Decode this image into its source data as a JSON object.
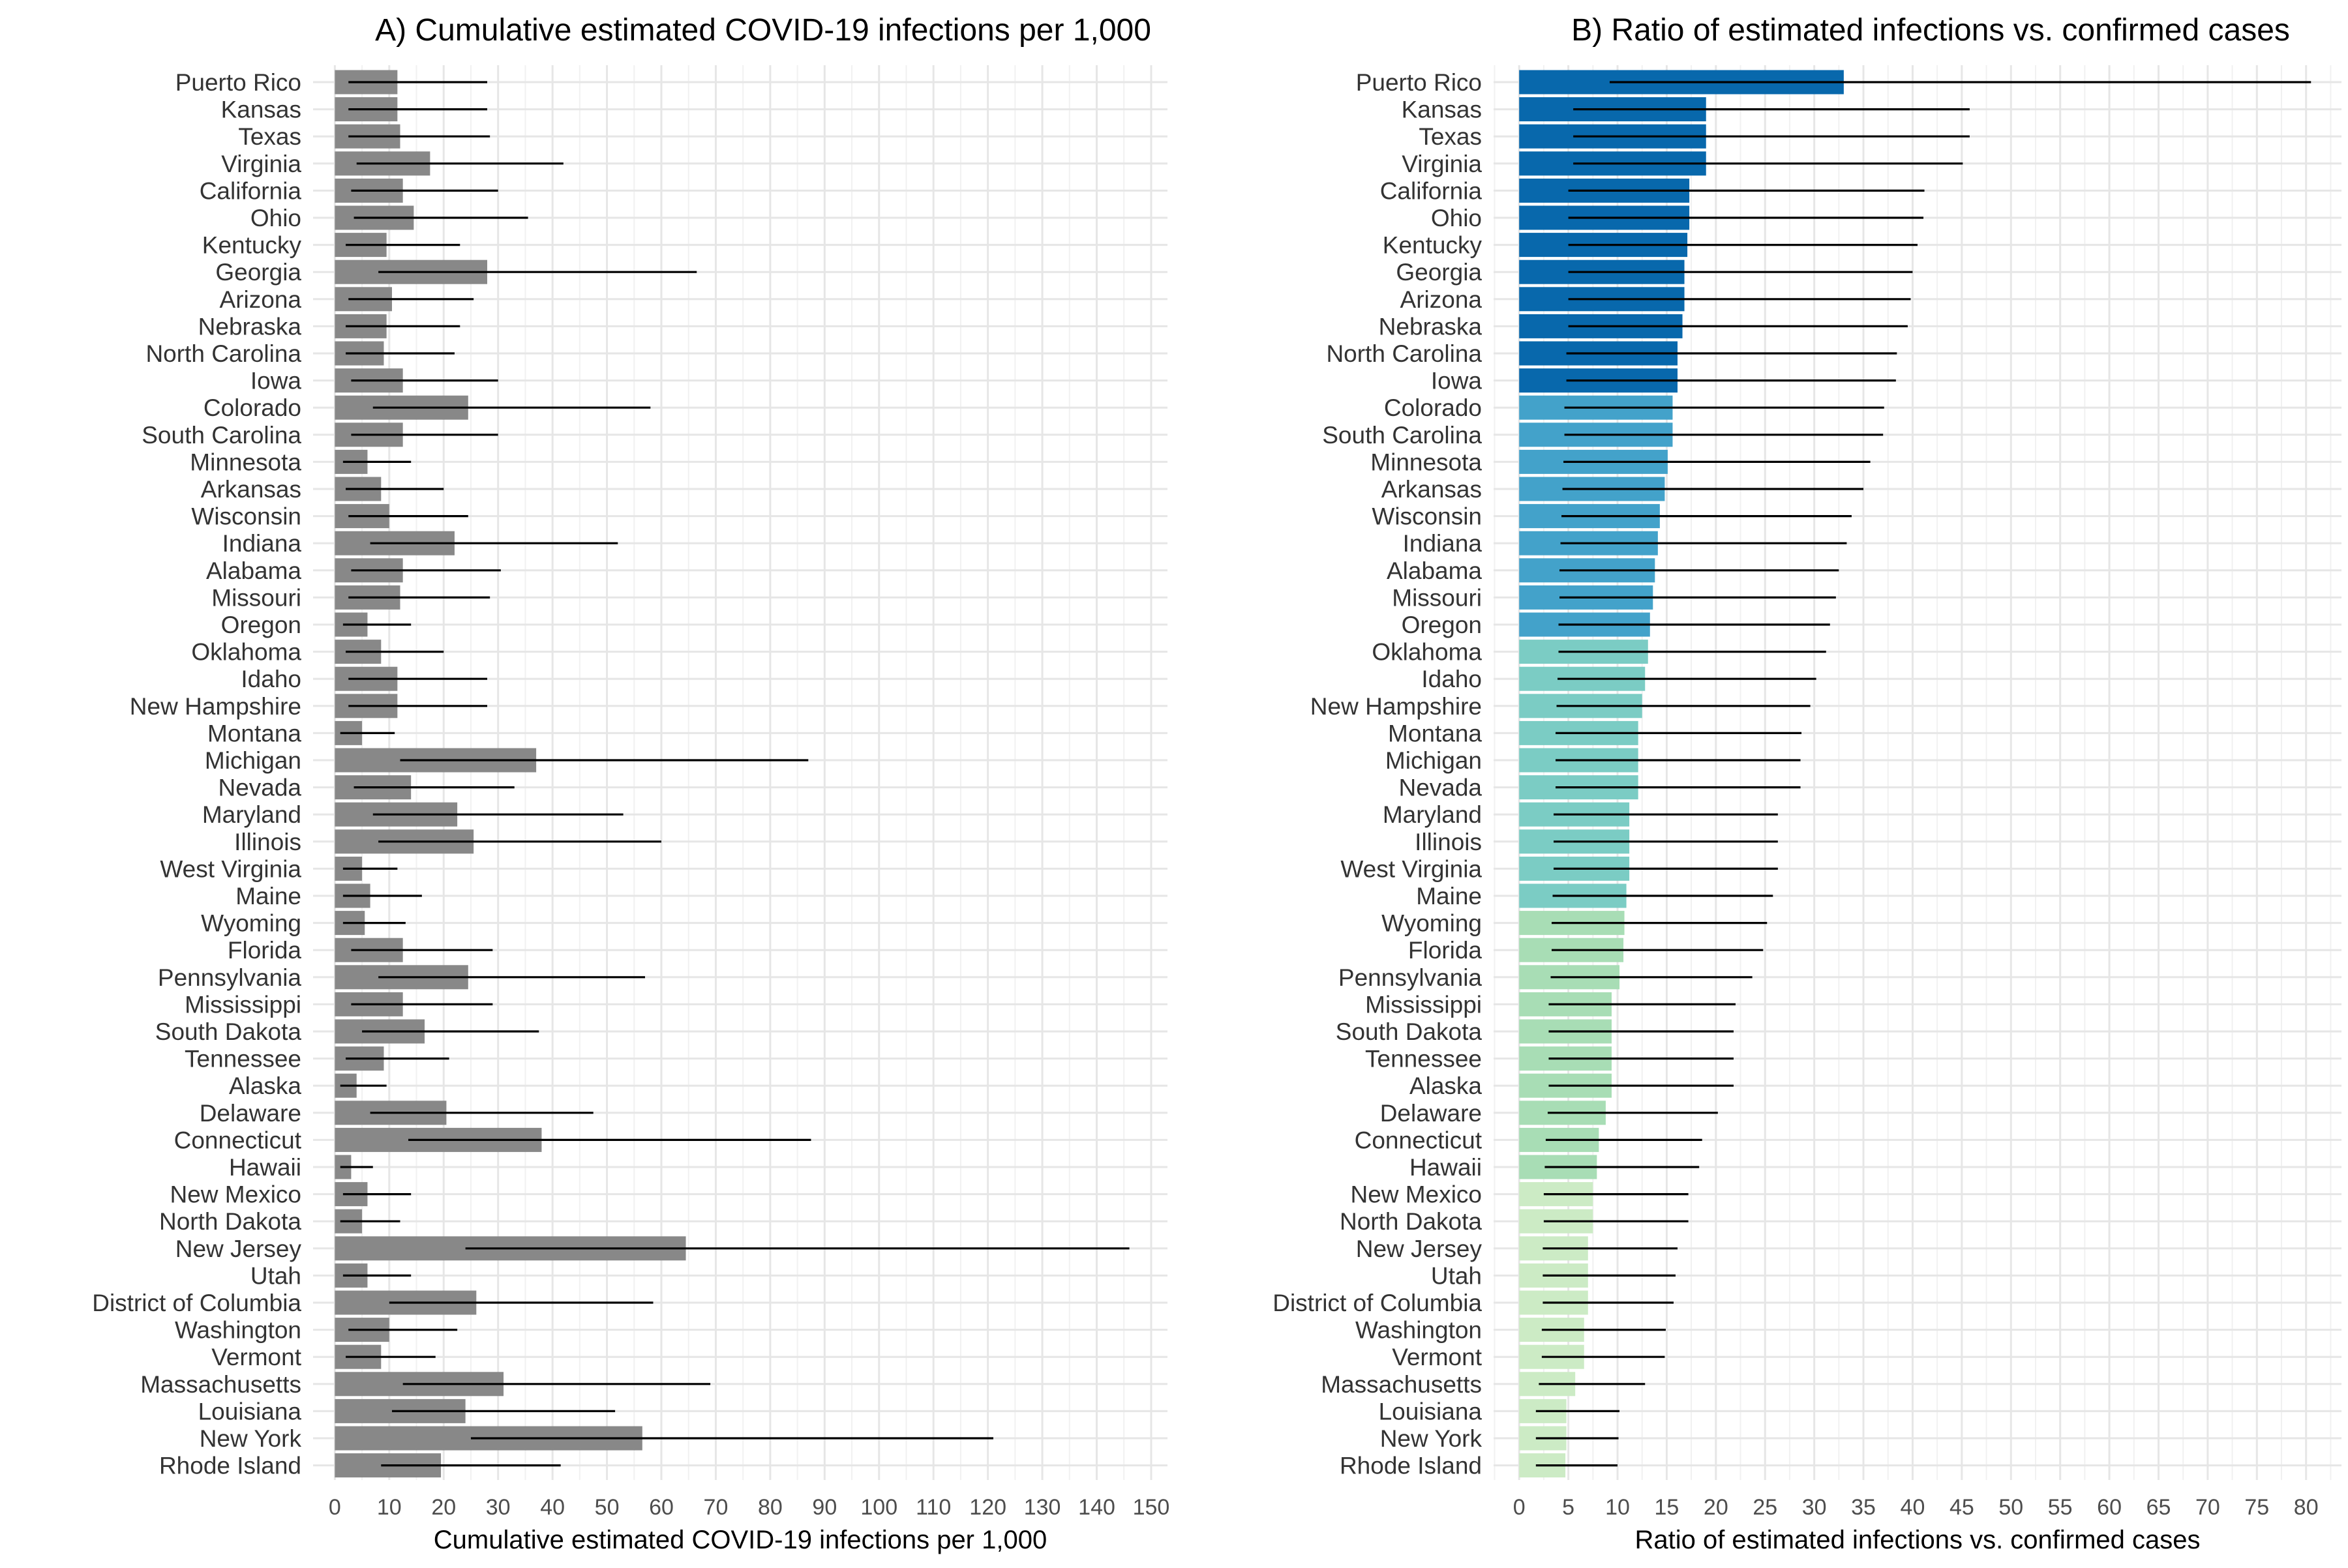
{
  "chart_data": [
    {
      "type": "bar",
      "orientation": "horizontal",
      "title": "A) Cumulative estimated COVID-19 infections per 1,000",
      "xlabel": "Cumulative estimated COVID-19 infections per 1,000",
      "ylabel": "",
      "xlim": [
        -4,
        153
      ],
      "xticks": [
        0,
        10,
        20,
        30,
        40,
        50,
        60,
        70,
        80,
        90,
        100,
        110,
        120,
        130,
        140,
        150
      ],
      "grid": true,
      "bar_color": "#888888",
      "categories": [
        "Puerto Rico",
        "Kansas",
        "Texas",
        "Virginia",
        "California",
        "Ohio",
        "Kentucky",
        "Georgia",
        "Arizona",
        "Nebraska",
        "North Carolina",
        "Iowa",
        "Colorado",
        "South Carolina",
        "Minnesota",
        "Arkansas",
        "Wisconsin",
        "Indiana",
        "Alabama",
        "Missouri",
        "Oregon",
        "Oklahoma",
        "Idaho",
        "New Hampshire",
        "Montana",
        "Michigan",
        "Nevada",
        "Maryland",
        "Illinois",
        "West Virginia",
        "Maine",
        "Wyoming",
        "Florida",
        "Pennsylvania",
        "Mississippi",
        "South Dakota",
        "Tennessee",
        "Alaska",
        "Delaware",
        "Connecticut",
        "Hawaii",
        "New Mexico",
        "North Dakota",
        "New Jersey",
        "Utah",
        "District of Columbia",
        "Washington",
        "Vermont",
        "Massachusetts",
        "Louisiana",
        "New York",
        "Rhode Island"
      ],
      "values": [
        11.5,
        11.5,
        12,
        17.5,
        12.5,
        14.5,
        9.5,
        28,
        10.5,
        9.5,
        9,
        12.5,
        24.5,
        12.5,
        6,
        8.5,
        10,
        22,
        12.5,
        12,
        6,
        8.5,
        11.5,
        11.5,
        5,
        37,
        14,
        22.5,
        25.5,
        5,
        6.5,
        5.5,
        12.5,
        24.5,
        12.5,
        16.5,
        9,
        4,
        20.5,
        38,
        3,
        6,
        5,
        64.5,
        6,
        26,
        10,
        8.5,
        31,
        24,
        56.5,
        19.5
      ],
      "error_low": [
        2.5,
        2.5,
        2.5,
        4,
        3,
        3.5,
        2,
        8,
        2.5,
        2,
        2,
        3,
        7,
        3,
        1.5,
        2,
        2.5,
        6.5,
        3,
        2.5,
        1.5,
        2,
        2.5,
        2.5,
        1,
        12,
        3.5,
        7,
        8,
        1.5,
        1.5,
        1.5,
        3,
        8,
        3,
        5,
        2,
        1,
        6.5,
        13.5,
        1,
        1.5,
        1,
        24,
        1.5,
        10,
        2.5,
        2,
        12.5,
        10.5,
        25,
        8.5
      ],
      "error_high": [
        28,
        28,
        28.5,
        42,
        30,
        35.5,
        23,
        66.5,
        25.5,
        23,
        22,
        30,
        58,
        30,
        14,
        20,
        24.5,
        52,
        30.5,
        28.5,
        14,
        20,
        28,
        28,
        11,
        87,
        33,
        53,
        60,
        11.5,
        16,
        13,
        29,
        57,
        29,
        37.5,
        21,
        9.5,
        47.5,
        87.5,
        7,
        14,
        12,
        146,
        14,
        58.5,
        22.5,
        18.5,
        69,
        51.5,
        121,
        41.5
      ]
    },
    {
      "type": "bar",
      "orientation": "horizontal",
      "title": "B) Ratio of estimated infections vs. confirmed cases",
      "xlabel": "Ratio of estimated infections vs. confirmed cases",
      "ylabel": "",
      "xlim": [
        -2.6,
        83.6
      ],
      "xticks": [
        0,
        5,
        10,
        15,
        20,
        25,
        30,
        35,
        40,
        45,
        50,
        55,
        60,
        65,
        70,
        75,
        80
      ],
      "grid": true,
      "categories": [
        "Puerto Rico",
        "Kansas",
        "Texas",
        "Virginia",
        "California",
        "Ohio",
        "Kentucky",
        "Georgia",
        "Arizona",
        "Nebraska",
        "North Carolina",
        "Iowa",
        "Colorado",
        "South Carolina",
        "Minnesota",
        "Arkansas",
        "Wisconsin",
        "Indiana",
        "Alabama",
        "Missouri",
        "Oregon",
        "Oklahoma",
        "Idaho",
        "New Hampshire",
        "Montana",
        "Michigan",
        "Nevada",
        "Maryland",
        "Illinois",
        "West Virginia",
        "Maine",
        "Wyoming",
        "Florida",
        "Pennsylvania",
        "Mississippi",
        "South Dakota",
        "Tennessee",
        "Alaska",
        "Delaware",
        "Connecticut",
        "Hawaii",
        "New Mexico",
        "North Dakota",
        "New Jersey",
        "Utah",
        "District of Columbia",
        "Washington",
        "Vermont",
        "Massachusetts",
        "Louisiana",
        "New York",
        "Rhode Island"
      ],
      "values": [
        33,
        19,
        19,
        19,
        17.3,
        17.3,
        17.1,
        16.8,
        16.8,
        16.6,
        16.1,
        16.1,
        15.6,
        15.6,
        15.1,
        14.8,
        14.3,
        14.1,
        13.8,
        13.6,
        13.3,
        13.1,
        12.8,
        12.5,
        12.1,
        12.1,
        12.1,
        11.2,
        11.2,
        11.2,
        10.9,
        10.7,
        10.6,
        10.2,
        9.4,
        9.4,
        9.4,
        9.4,
        8.8,
        8.1,
        7.9,
        7.5,
        7.5,
        7,
        7,
        7,
        6.6,
        6.6,
        5.7,
        4.8,
        4.8,
        4.7
      ],
      "error_low": [
        9.2,
        5.5,
        5.5,
        5.5,
        5,
        5,
        5,
        5,
        5,
        5,
        4.8,
        4.8,
        4.6,
        4.6,
        4.5,
        4.4,
        4.3,
        4.2,
        4.1,
        4.1,
        4,
        4,
        3.9,
        3.8,
        3.7,
        3.7,
        3.7,
        3.5,
        3.5,
        3.5,
        3.4,
        3.3,
        3.3,
        3.2,
        3,
        3,
        3,
        3,
        2.9,
        2.7,
        2.6,
        2.5,
        2.5,
        2.4,
        2.4,
        2.4,
        2.3,
        2.3,
        2,
        1.7,
        1.7,
        1.7
      ],
      "error_high": [
        80.5,
        45.8,
        45.8,
        45.1,
        41.2,
        41.1,
        40.5,
        40,
        39.8,
        39.5,
        38.4,
        38.3,
        37.1,
        37,
        35.7,
        35,
        33.8,
        33.3,
        32.5,
        32.2,
        31.6,
        31.2,
        30.2,
        29.6,
        28.7,
        28.6,
        28.6,
        26.3,
        26.3,
        26.3,
        25.8,
        25.2,
        24.8,
        23.7,
        22,
        21.8,
        21.8,
        21.8,
        20.2,
        18.6,
        18.3,
        17.2,
        17.2,
        16.1,
        15.9,
        15.7,
        14.9,
        14.8,
        12.8,
        10.2,
        10.1,
        10
      ],
      "color_groups": [
        {
          "from": 0,
          "to": 11,
          "color": "#0868ac"
        },
        {
          "from": 12,
          "to": 20,
          "color": "#43a2ca"
        },
        {
          "from": 21,
          "to": 30,
          "color": "#7bccc4"
        },
        {
          "from": 31,
          "to": 40,
          "color": "#a8ddb5"
        },
        {
          "from": 41,
          "to": 51,
          "color": "#ccebc5"
        }
      ]
    }
  ]
}
